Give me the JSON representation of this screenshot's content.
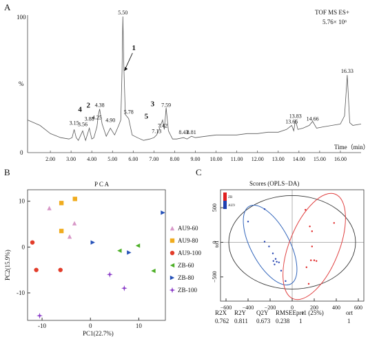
{
  "panels": {
    "A": {
      "letter": "A",
      "instrument": "TOF MS ES+",
      "intensity": "5.76× 10⁶",
      "y_top": "100",
      "y_unit": "%",
      "y_bottom": "0",
      "x_label": "Time（min）"
    },
    "B": {
      "letter": "B",
      "title": "P C A",
      "xlabel": "PC1(22.7%)",
      "ylabel": "PC2(15.9%)"
    },
    "C": {
      "letter": "C",
      "title": "Scores (OPLS−DA)",
      "stats_headers": [
        "R2X",
        "R2Y",
        "Q2Y",
        "RMSEE",
        "pre",
        "ort"
      ],
      "stats_values": [
        "0.762",
        "0.811",
        "0.673",
        "0.238",
        "1",
        "1"
      ],
      "x_axis_title": "t1 (25%)",
      "y_axis_title": "to1",
      "legend": [
        "ZB",
        "AU9"
      ]
    }
  },
  "chart_data": [
    {
      "panel": "A",
      "type": "line",
      "title": "",
      "xlabel": "Time（min）",
      "ylabel": "%",
      "xlim": [
        0.9,
        17.0
      ],
      "ylim": [
        0,
        100
      ],
      "x_ticks": [
        "2.00",
        "3.00",
        "4.00",
        "5.00",
        "6.00",
        "7.00",
        "8.00",
        "9.00",
        "10.00",
        "11.00",
        "12.00",
        "13.00",
        "14.00",
        "15.00",
        "16.00"
      ],
      "x": [
        0.9,
        1.5,
        2.0,
        2.5,
        2.9,
        3.05,
        3.15,
        3.25,
        3.35,
        3.56,
        3.7,
        3.88,
        4.0,
        4.1,
        4.25,
        4.32,
        4.38,
        4.5,
        4.7,
        4.9,
        5.1,
        5.3,
        5.4,
        5.46,
        5.5,
        5.55,
        5.62,
        5.78,
        5.95,
        6.2,
        6.5,
        6.8,
        7.0,
        7.13,
        7.25,
        7.42,
        7.5,
        7.59,
        7.7,
        7.9,
        8.1,
        8.43,
        8.6,
        8.81,
        9.0,
        9.5,
        10.0,
        10.5,
        11.0,
        11.5,
        12.0,
        12.5,
        13.0,
        13.4,
        13.65,
        13.75,
        13.83,
        13.95,
        14.2,
        14.5,
        14.66,
        14.85,
        15.2,
        15.6,
        16.0,
        16.2,
        16.28,
        16.33,
        16.38,
        16.45,
        16.6,
        17.0
      ],
      "y": [
        24,
        20,
        14,
        11,
        10,
        11,
        17,
        11,
        9,
        16,
        9,
        18,
        10,
        11,
        19,
        28,
        32,
        21,
        12,
        18,
        13,
        20,
        24,
        60,
        100,
        62,
        28,
        25,
        13,
        11,
        9,
        10,
        11,
        13,
        17,
        24,
        17,
        33,
        16,
        10,
        10,
        11,
        10,
        12,
        11,
        12,
        13,
        13,
        13,
        14,
        14,
        15,
        15,
        17,
        20,
        16,
        24,
        17,
        18,
        20,
        23,
        18,
        19,
        20,
        21,
        27,
        45,
        57,
        43,
        22,
        20,
        21
      ],
      "peak_labels": [
        "3.15",
        "3.56",
        "3.88",
        "4.25",
        "4.38",
        "4.90",
        "5.50",
        "5.78",
        "7.13",
        "7.42",
        "7.59",
        "8.43",
        "8.81",
        "13.65",
        "13.83",
        "14.66",
        "16.33"
      ],
      "peak_label_x": [
        3.15,
        3.56,
        3.88,
        4.25,
        4.38,
        4.9,
        5.5,
        5.78,
        7.13,
        7.42,
        7.59,
        8.43,
        8.81,
        13.65,
        13.83,
        14.66,
        16.33
      ],
      "peak_label_y": [
        19,
        18,
        22,
        23,
        32,
        21,
        100,
        27,
        13,
        17,
        32,
        12,
        12,
        20,
        24,
        22,
        57
      ],
      "annotations": [
        "1",
        "2",
        "3",
        "4",
        "5"
      ],
      "annotation_x": [
        5.5,
        4.1,
        7.2,
        3.7,
        6.9
      ],
      "annotation_y": [
        60,
        30,
        31,
        27,
        22
      ]
    },
    {
      "panel": "B",
      "type": "scatter",
      "title": "P C A",
      "xlabel": "PC1(22.7%)",
      "ylabel": "PC2(15.9%)",
      "xlim": [
        -13,
        15.5
      ],
      "ylim": [
        -16,
        12.5
      ],
      "x_ticks": [
        "-10",
        "0",
        "10"
      ],
      "y_ticks": [
        "-10",
        "0",
        "10"
      ],
      "legend": "right",
      "series": [
        {
          "name": "AU9-60",
          "color": "#d898c8",
          "marker": "triangle-up",
          "x": [
            -8.5,
            -3.3,
            -4.3
          ],
          "y": [
            8.5,
            5.2,
            2.3
          ]
        },
        {
          "name": "AU9-80",
          "color": "#f0ac1e",
          "marker": "square",
          "x": [
            -6.0,
            -3.2,
            -6.0
          ],
          "y": [
            9.6,
            10.5,
            3.5
          ]
        },
        {
          "name": "AU9-100",
          "color": "#e23c2a",
          "marker": "circle",
          "x": [
            -12.0,
            -11.2,
            -6.2
          ],
          "y": [
            1.0,
            -5.0,
            -5.0
          ]
        },
        {
          "name": "ZB-60",
          "color": "#4caf26",
          "marker": "triangle-left",
          "x": [
            6.0,
            9.8,
            13.0
          ],
          "y": [
            -0.8,
            0.3,
            -5.2
          ]
        },
        {
          "name": "ZB-80",
          "color": "#2450b8",
          "marker": "triangle-right",
          "x": [
            0.5,
            8.0,
            15.0
          ],
          "y": [
            1.0,
            -1.2,
            7.5
          ]
        },
        {
          "name": "ZB-100",
          "color": "#8a3cc8",
          "marker": "star",
          "x": [
            4.0,
            7.0,
            -10.5
          ],
          "y": [
            -6.0,
            -9.0,
            -15.0
          ]
        }
      ]
    },
    {
      "panel": "C",
      "type": "scatter",
      "title": "Scores (OPLS−DA)",
      "xlabel": "t1 (25%)",
      "ylabel": "to1",
      "xlim": [
        -650,
        650
      ],
      "ylim": [
        -850,
        760
      ],
      "x_ticks": [
        "−600",
        "−400",
        "−200",
        "0",
        "200",
        "400",
        "600"
      ],
      "y_ticks": [
        "500",
        "0",
        "−500"
      ],
      "legend": "top-left",
      "series": [
        {
          "name": "ZB",
          "color": "#e02020",
          "marker": "dot",
          "x": [
            120,
            160,
            180,
            180,
            170,
            200,
            220,
            130,
            380,
            150
          ],
          "y": [
            470,
            230,
            160,
            -60,
            -260,
            -260,
            -270,
            -360,
            280,
            -600
          ]
        },
        {
          "name": "AU9",
          "color": "#2040b0",
          "marker": "dot",
          "x": [
            -400,
            -250,
            -210,
            -175,
            -170,
            -150,
            -140,
            -160,
            -120,
            -100,
            -60,
            -250
          ],
          "y": [
            300,
            10,
            -60,
            -160,
            -270,
            -240,
            -280,
            -320,
            -290,
            -410,
            -560,
            480
          ]
        }
      ]
    }
  ]
}
